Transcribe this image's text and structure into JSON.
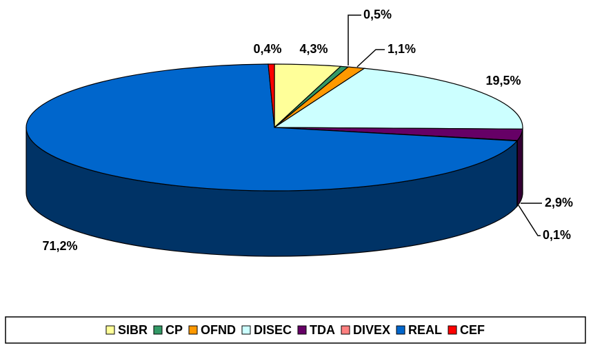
{
  "chart_data": {
    "type": "pie",
    "3d": true,
    "categories": [
      "SIBR",
      "CP",
      "OFND",
      "DISEC",
      "TDA",
      "DIVEX",
      "REAL",
      "CEF"
    ],
    "values": [
      4.3,
      0.5,
      1.1,
      19.5,
      2.9,
      0.1,
      71.2,
      0.4
    ],
    "value_labels": [
      "4,3%",
      "0,5%",
      "1,1%",
      "19,5%",
      "2,9%",
      "0,1%",
      "71,2%",
      "0,4%"
    ],
    "colors": [
      "#ffff99",
      "#339966",
      "#ff9900",
      "#ccffff",
      "#660066",
      "#ff8080",
      "#0066cc",
      "#ff0000"
    ],
    "legend": "bottom"
  }
}
